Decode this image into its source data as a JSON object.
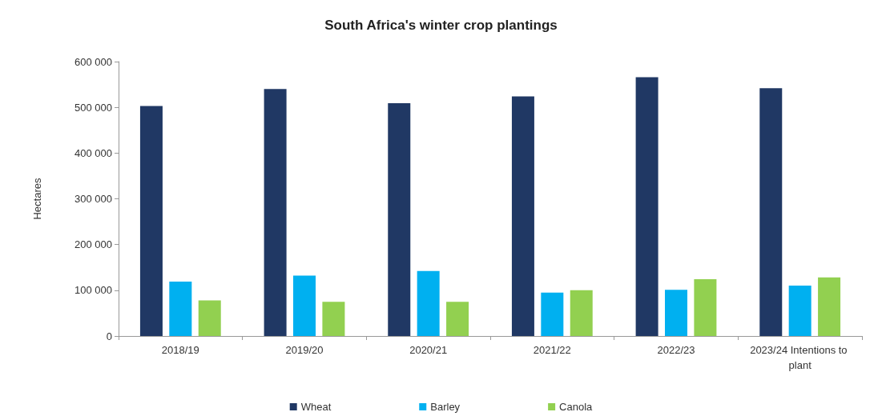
{
  "chart_data": {
    "type": "bar",
    "title": "South Africa's winter crop plantings",
    "ylabel": "Hectares",
    "categories": [
      "2018/19",
      "2019/20",
      "2020/21",
      "2021/22",
      "2022/23",
      "2023/24 Intentions to plant"
    ],
    "series": [
      {
        "name": "Wheat",
        "color": "#203864",
        "values": [
          503000,
          540000,
          509000,
          524000,
          566000,
          542000
        ]
      },
      {
        "name": "Barley",
        "color": "#00b0f0",
        "values": [
          119000,
          132000,
          142000,
          95000,
          101000,
          110000
        ]
      },
      {
        "name": "Canola",
        "color": "#92d050",
        "values": [
          78000,
          75000,
          75000,
          100000,
          124000,
          128000
        ]
      }
    ],
    "ylim": [
      0,
      600000
    ],
    "yticks": [
      {
        "value": 0,
        "label": "0"
      },
      {
        "value": 100000,
        "label": "100 000"
      },
      {
        "value": 200000,
        "label": "200 000"
      },
      {
        "value": 300000,
        "label": "300 000"
      },
      {
        "value": 400000,
        "label": "400 000"
      },
      {
        "value": 500000,
        "label": "500 000"
      },
      {
        "value": 600000,
        "label": "600 000"
      }
    ],
    "grid": false,
    "legend": "bottom"
  }
}
